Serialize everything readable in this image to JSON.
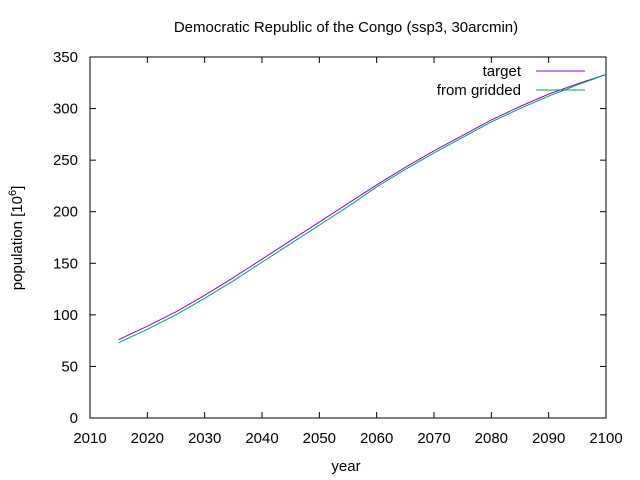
{
  "chart_data": {
    "type": "line",
    "title": "Democratic Republic of the Congo (ssp3, 30arcmin)",
    "xlabel": "year",
    "ylabel": "population [10",
    "ylabel_sup": "6",
    "ylabel_end": "]",
    "xlim": [
      2010,
      2100
    ],
    "ylim": [
      0,
      350
    ],
    "xticks": [
      2010,
      2020,
      2030,
      2040,
      2050,
      2060,
      2070,
      2080,
      2090,
      2100
    ],
    "yticks": [
      0,
      50,
      100,
      150,
      200,
      250,
      300,
      350
    ],
    "grid": false,
    "legend_position": "top-right",
    "series": [
      {
        "name": "target",
        "color": "#9400d3",
        "x": [
          2015,
          2020,
          2025,
          2030,
          2035,
          2040,
          2045,
          2050,
          2055,
          2060,
          2065,
          2070,
          2075,
          2080,
          2085,
          2090,
          2095,
          2100
        ],
        "y": [
          76,
          89,
          103,
          119,
          136,
          154,
          172,
          190,
          208,
          226,
          243,
          259,
          274,
          289,
          302,
          314,
          324,
          333
        ]
      },
      {
        "name": "from gridded",
        "color": "#009e73",
        "x": [
          2015,
          2020,
          2025,
          2030,
          2035,
          2040,
          2045,
          2050,
          2055,
          2060,
          2065,
          2070,
          2075,
          2080,
          2085,
          2090,
          2095,
          2100
        ],
        "y": [
          73,
          86,
          100,
          116,
          133,
          151,
          169,
          187,
          205,
          224,
          241,
          257,
          272,
          287,
          300,
          312,
          323,
          333
        ]
      }
    ]
  }
}
